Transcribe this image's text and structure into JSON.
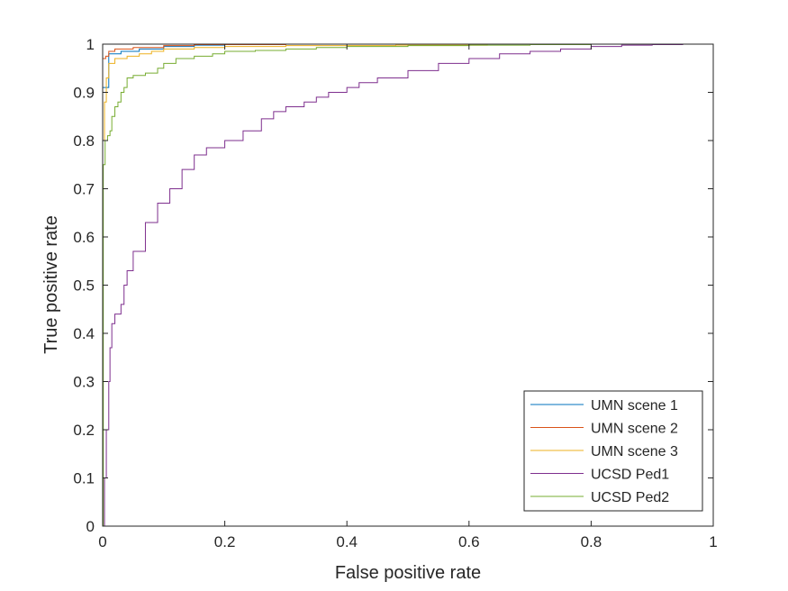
{
  "chart_data": {
    "type": "line",
    "title": "",
    "xlabel": "False positive rate",
    "ylabel": "True positive rate",
    "xlim": [
      0,
      1
    ],
    "ylim": [
      0,
      1
    ],
    "x_ticks": [
      "0",
      "0.2",
      "0.4",
      "0.6",
      "0.8",
      "1"
    ],
    "y_ticks": [
      "0",
      "0.1",
      "0.2",
      "0.3",
      "0.4",
      "0.5",
      "0.6",
      "0.7",
      "0.8",
      "0.9",
      "1"
    ],
    "grid": false,
    "legend_position": "bottom-right",
    "series": [
      {
        "name": "UMN scene 1",
        "color": "#0072BD",
        "points": [
          [
            0,
            0
          ],
          [
            0,
            0.91
          ],
          [
            0.01,
            0.91
          ],
          [
            0.01,
            0.98
          ],
          [
            0.03,
            0.98
          ],
          [
            0.03,
            0.985
          ],
          [
            0.06,
            0.99
          ],
          [
            0.1,
            0.995
          ],
          [
            0.15,
            0.998
          ],
          [
            0.2,
            1
          ],
          [
            1,
            1
          ]
        ]
      },
      {
        "name": "UMN scene 2",
        "color": "#D95319",
        "points": [
          [
            0,
            0
          ],
          [
            0,
            0.97
          ],
          [
            0.005,
            0.975
          ],
          [
            0.01,
            0.985
          ],
          [
            0.02,
            0.99
          ],
          [
            0.05,
            0.993
          ],
          [
            0.1,
            0.997
          ],
          [
            0.15,
            0.999
          ],
          [
            0.3,
            1
          ],
          [
            1,
            1
          ]
        ]
      },
      {
        "name": "UMN scene 3",
        "color": "#EDB120",
        "points": [
          [
            0,
            0
          ],
          [
            0,
            0.8
          ],
          [
            0.003,
            0.88
          ],
          [
            0.006,
            0.93
          ],
          [
            0.01,
            0.96
          ],
          [
            0.02,
            0.97
          ],
          [
            0.04,
            0.975
          ],
          [
            0.06,
            0.98
          ],
          [
            0.08,
            0.985
          ],
          [
            0.1,
            0.99
          ],
          [
            0.15,
            0.993
          ],
          [
            0.2,
            0.995
          ],
          [
            0.3,
            0.997
          ],
          [
            0.48,
            0.998
          ],
          [
            0.63,
            1
          ],
          [
            1,
            1
          ]
        ]
      },
      {
        "name": "UCSD Ped1",
        "color": "#7E2F8E",
        "points": [
          [
            0,
            0
          ],
          [
            0.003,
            0.1
          ],
          [
            0.006,
            0.2
          ],
          [
            0.01,
            0.3
          ],
          [
            0.012,
            0.37
          ],
          [
            0.015,
            0.42
          ],
          [
            0.02,
            0.44
          ],
          [
            0.03,
            0.46
          ],
          [
            0.035,
            0.5
          ],
          [
            0.04,
            0.53
          ],
          [
            0.05,
            0.57
          ],
          [
            0.07,
            0.63
          ],
          [
            0.09,
            0.67
          ],
          [
            0.11,
            0.7
          ],
          [
            0.13,
            0.74
          ],
          [
            0.15,
            0.77
          ],
          [
            0.17,
            0.785
          ],
          [
            0.2,
            0.8
          ],
          [
            0.23,
            0.82
          ],
          [
            0.26,
            0.845
          ],
          [
            0.28,
            0.86
          ],
          [
            0.3,
            0.87
          ],
          [
            0.33,
            0.88
          ],
          [
            0.35,
            0.89
          ],
          [
            0.37,
            0.9
          ],
          [
            0.4,
            0.91
          ],
          [
            0.42,
            0.92
          ],
          [
            0.45,
            0.93
          ],
          [
            0.5,
            0.945
          ],
          [
            0.55,
            0.96
          ],
          [
            0.6,
            0.97
          ],
          [
            0.65,
            0.98
          ],
          [
            0.7,
            0.985
          ],
          [
            0.75,
            0.99
          ],
          [
            0.8,
            0.995
          ],
          [
            0.85,
            0.998
          ],
          [
            0.9,
            0.999
          ],
          [
            0.95,
            1
          ],
          [
            1,
            1
          ]
        ]
      },
      {
        "name": "UCSD Ped2",
        "color": "#77AC30",
        "points": [
          [
            0,
            0
          ],
          [
            0.001,
            0.75
          ],
          [
            0.004,
            0.8
          ],
          [
            0.008,
            0.81
          ],
          [
            0.012,
            0.82
          ],
          [
            0.015,
            0.85
          ],
          [
            0.02,
            0.87
          ],
          [
            0.025,
            0.88
          ],
          [
            0.03,
            0.9
          ],
          [
            0.035,
            0.91
          ],
          [
            0.04,
            0.93
          ],
          [
            0.05,
            0.935
          ],
          [
            0.07,
            0.94
          ],
          [
            0.09,
            0.95
          ],
          [
            0.1,
            0.96
          ],
          [
            0.12,
            0.97
          ],
          [
            0.15,
            0.975
          ],
          [
            0.18,
            0.98
          ],
          [
            0.2,
            0.985
          ],
          [
            0.25,
            0.987
          ],
          [
            0.3,
            0.99
          ],
          [
            0.35,
            0.993
          ],
          [
            0.4,
            0.995
          ],
          [
            0.5,
            0.997
          ],
          [
            0.6,
            0.998
          ],
          [
            0.7,
            0.999
          ],
          [
            0.8,
            1
          ],
          [
            1,
            1
          ]
        ]
      }
    ]
  }
}
